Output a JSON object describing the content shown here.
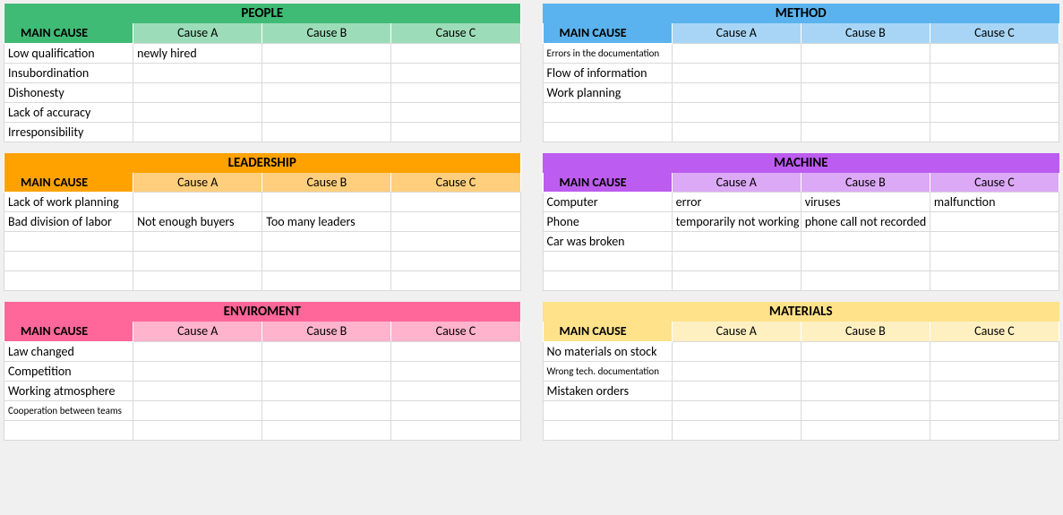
{
  "layout": {
    "cols": 2,
    "mainCauseLabel": "MAIN CAUSE",
    "subHeaders": [
      "Cause A",
      "Cause B",
      "Cause C"
    ],
    "bodyRows": 5,
    "bg": "#f0f0f0",
    "cellBorder": "#d9d9d9"
  },
  "tables": [
    {
      "title": "PEOPLE",
      "titleBg": "#3fbb75",
      "titleColor": "#000000",
      "mainCauseBg": "#3fbb75",
      "subHdrBg": "#9ddcb8",
      "rows": [
        [
          "Low qualification",
          "newly hired",
          "",
          ""
        ],
        [
          "Insubordination",
          "",
          "",
          ""
        ],
        [
          "Dishonesty",
          "",
          "",
          ""
        ],
        [
          "Lack of accuracy",
          "",
          "",
          ""
        ],
        [
          "Irresponsibility",
          "",
          "",
          ""
        ]
      ]
    },
    {
      "title": "METHOD",
      "titleBg": "#5ab3ee",
      "titleColor": "#000000",
      "mainCauseBg": "#5ab3ee",
      "subHdrBg": "#a8d5f5",
      "rows": [
        [
          "Errors in the documentation",
          "",
          "",
          ""
        ],
        [
          "Flow of information",
          "",
          "",
          ""
        ],
        [
          "Work planning",
          "",
          "",
          ""
        ],
        [
          "",
          "",
          "",
          ""
        ],
        [
          "",
          "",
          "",
          ""
        ]
      ],
      "smallRows": [
        0
      ]
    },
    {
      "title": "LEADERSHIP",
      "titleBg": "#ffa200",
      "titleColor": "#000000",
      "mainCauseBg": "#ffa200",
      "subHdrBg": "#ffcf7d",
      "rows": [
        [
          "Lack of work planning",
          "",
          "",
          ""
        ],
        [
          "Bad division of labor",
          "Not enough buyers",
          "Too many leaders",
          ""
        ],
        [
          "",
          "",
          "",
          ""
        ],
        [
          "",
          "",
          "",
          ""
        ],
        [
          "",
          "",
          "",
          ""
        ]
      ]
    },
    {
      "title": "MACHINE",
      "titleBg": "#bd5cf0",
      "titleColor": "#000000",
      "mainCauseBg": "#bd5cf0",
      "subHdrBg": "#dca9f6",
      "rows": [
        [
          "Computer",
          "error",
          "viruses",
          "malfunction"
        ],
        [
          "Phone",
          "temporarily not working",
          "phone call not recorded",
          ""
        ],
        [
          "Car was broken",
          "",
          "",
          ""
        ],
        [
          "",
          "",
          "",
          ""
        ],
        [
          "",
          "",
          "",
          ""
        ]
      ]
    },
    {
      "title": "ENVIROMENT",
      "titleBg": "#ff6699",
      "titleColor": "#000000",
      "mainCauseBg": "#ff6699",
      "subHdrBg": "#ffb3cc",
      "rows": [
        [
          "Law changed",
          "",
          "",
          ""
        ],
        [
          "Competition",
          "",
          "",
          ""
        ],
        [
          "Working atmosphere",
          "",
          "",
          ""
        ],
        [
          "Cooperation between teams",
          "",
          "",
          ""
        ],
        [
          "",
          "",
          "",
          ""
        ]
      ],
      "smallRows": [
        3
      ]
    },
    {
      "title": "MATERIALS",
      "titleBg": "#ffe28a",
      "titleColor": "#000000",
      "mainCauseBg": "#ffe28a",
      "subHdrBg": "#fff0c2",
      "rows": [
        [
          "No materials on stock",
          "",
          "",
          ""
        ],
        [
          "Wrong tech. documentation",
          "",
          "",
          ""
        ],
        [
          "Mistaken orders",
          "",
          "",
          ""
        ],
        [
          "",
          "",
          "",
          ""
        ],
        [
          "",
          "",
          "",
          ""
        ]
      ],
      "smallRows": [
        1
      ]
    }
  ]
}
